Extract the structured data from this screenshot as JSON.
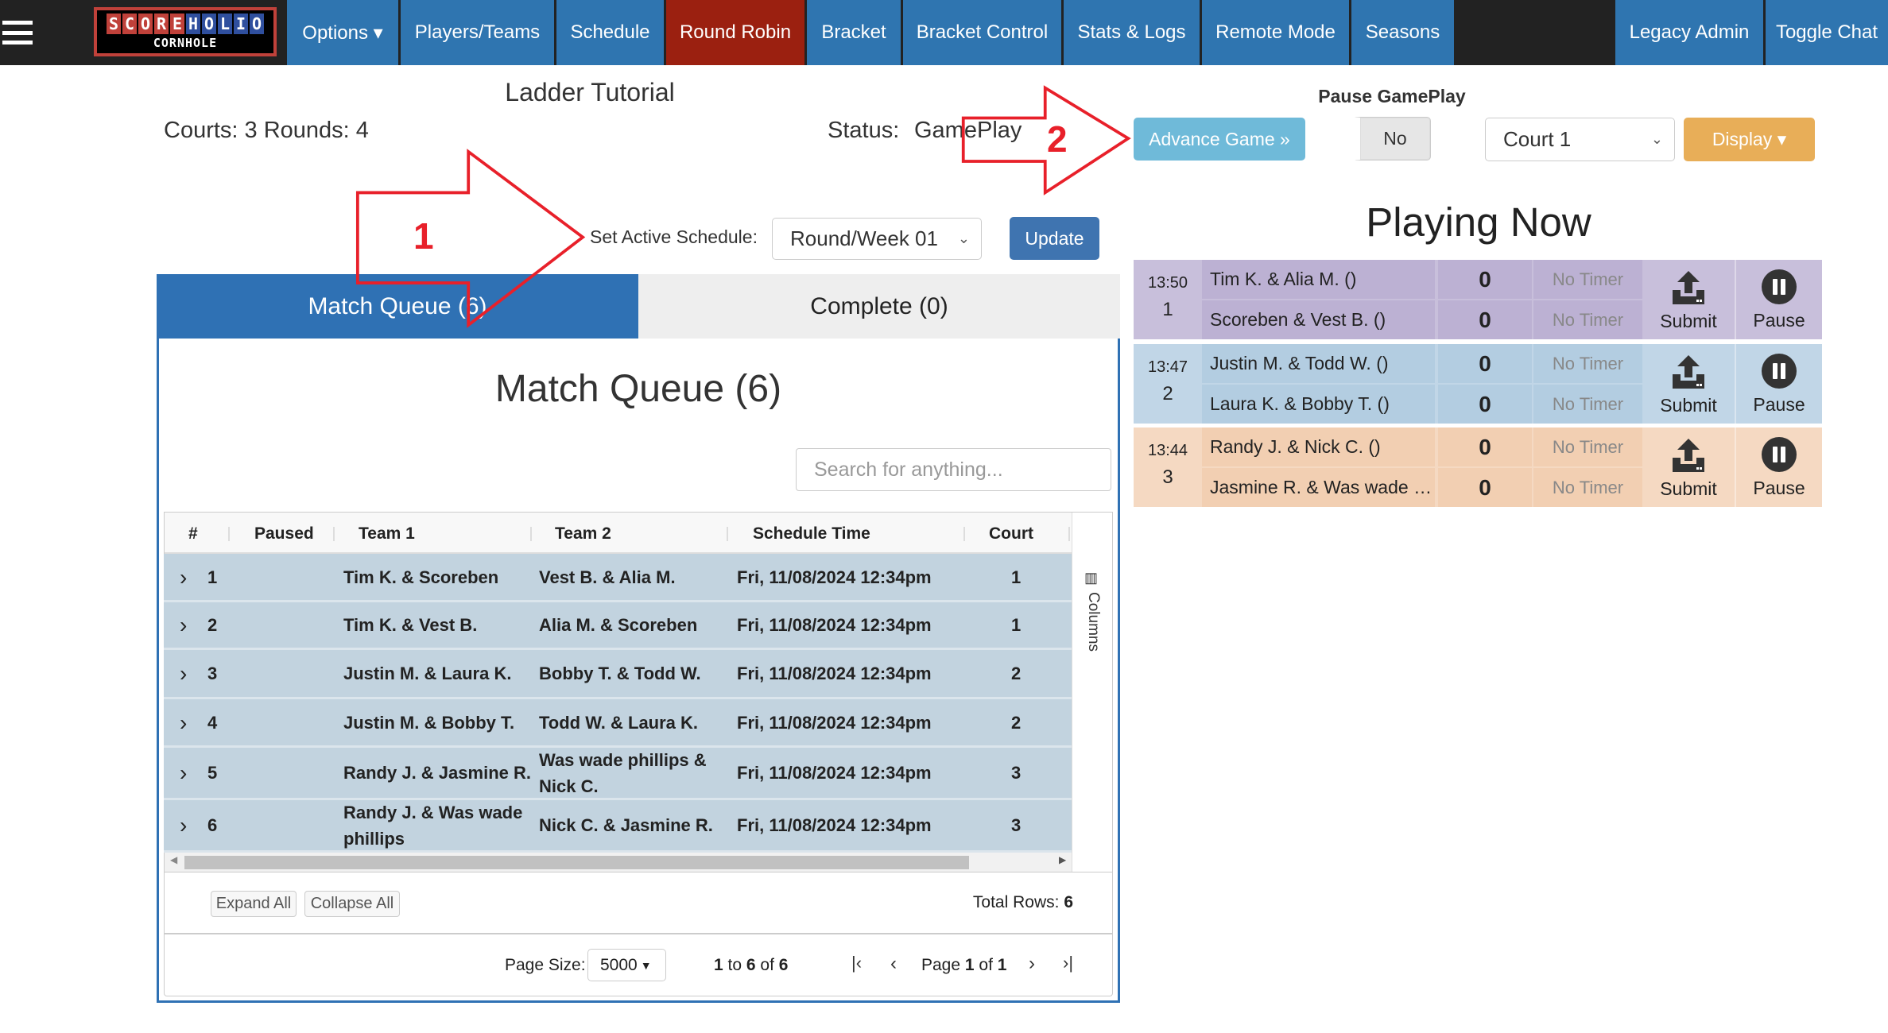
{
  "nav": {
    "logo_top": [
      "S",
      "C",
      "O",
      "R",
      "E",
      "H",
      "O",
      "L",
      "I",
      "O"
    ],
    "logo_bottom": "CORNHOLE",
    "items": [
      "Options ▾",
      "Players/Teams",
      "Schedule",
      "Round Robin",
      "Bracket",
      "Bracket Control",
      "Stats & Logs",
      "Remote Mode",
      "Seasons"
    ],
    "active": "Round Robin",
    "right_items": [
      "Legacy Admin",
      "Toggle Chat"
    ]
  },
  "header": {
    "title": "Ladder Tutorial",
    "courts_rounds": "Courts: 3 Rounds: 4",
    "status_label": "Status:",
    "status_value": "GamePlay",
    "pause_label": "Pause GamePlay",
    "pause_value": "No",
    "advance_label": "Advance Game »",
    "court_select": "Court 1",
    "display_label": "Display ▾"
  },
  "schedule": {
    "label": "Set Active Schedule:",
    "value": "Round/Week 01",
    "update_label": "Update"
  },
  "annotations": {
    "arrow1": "1",
    "arrow2": "2",
    "color": "#e8202a"
  },
  "tabs": [
    {
      "label": "Match Queue (6)",
      "active": true
    },
    {
      "label": "Complete (0)",
      "active": false
    }
  ],
  "queue": {
    "heading": "Match Queue (6)",
    "search_placeholder": "Search for anything...",
    "columns": [
      "#",
      "Paused",
      "Team 1",
      "Team 2",
      "Schedule Time",
      "Court"
    ],
    "columns_panel": "Columns",
    "rows": [
      {
        "num": "1",
        "paused": "",
        "team1": "Tim K. & Scoreben",
        "team2": "Vest B. & Alia M.",
        "time": "Fri, 11/08/2024 12:34pm",
        "court": "1"
      },
      {
        "num": "2",
        "paused": "",
        "team1": "Tim K. & Vest B.",
        "team2": "Alia M. & Scoreben",
        "time": "Fri, 11/08/2024 12:34pm",
        "court": "1"
      },
      {
        "num": "3",
        "paused": "",
        "team1": "Justin M. & Laura K.",
        "team2": "Bobby T. & Todd W.",
        "time": "Fri, 11/08/2024 12:34pm",
        "court": "2"
      },
      {
        "num": "4",
        "paused": "",
        "team1": "Justin M. & Bobby T.",
        "team2": "Todd W. & Laura K.",
        "time": "Fri, 11/08/2024 12:34pm",
        "court": "2"
      },
      {
        "num": "5",
        "paused": "",
        "team1": "Randy J. & Jasmine R.",
        "team2": "Was wade phillips & Nick C.",
        "time": "Fri, 11/08/2024 12:34pm",
        "court": "3"
      },
      {
        "num": "6",
        "paused": "",
        "team1": "Randy J. & Was wade phillips",
        "team2": "Nick C. & Jasmine R.",
        "time": "Fri, 11/08/2024 12:34pm",
        "court": "3"
      }
    ],
    "expand_all": "Expand All",
    "collapse_all": "Collapse All",
    "total_rows_label": "Total Rows:",
    "total_rows": "6",
    "page_size_label": "Page Size:",
    "page_size": "5000",
    "range_from": "1",
    "range_to_word": "to",
    "range_to": "6",
    "range_of_word": "of",
    "range_total": "6",
    "page_word": "Page",
    "page": "1",
    "page_of_word": "of",
    "page_total": "1"
  },
  "playing_now": {
    "title": "Playing Now",
    "matches": [
      {
        "time": "13:50",
        "court": "1",
        "team1": "Tim K. & Alia M. ()",
        "team2": "Scoreben & Vest B. ()",
        "score1": "0",
        "score2": "0",
        "timer1": "No Timer",
        "timer2": "No Timer",
        "submit": "Submit",
        "pause": "Pause",
        "color": "#bcb1d3",
        "color_light": "#c8bfdb"
      },
      {
        "time": "13:47",
        "court": "2",
        "team1": "Justin M. & Todd W. ()",
        "team2": "Laura K. & Bobby T. ()",
        "score1": "0",
        "score2": "0",
        "timer1": "No Timer",
        "timer2": "No Timer",
        "submit": "Submit",
        "pause": "Pause",
        "color": "#b3cde1",
        "color_light": "#c1d6e7"
      },
      {
        "time": "13:44",
        "court": "3",
        "team1": "Randy J. & Nick C. ()",
        "team2": "Jasmine R. & Was wade …",
        "score1": "0",
        "score2": "0",
        "timer1": "No Timer",
        "timer2": "No Timer",
        "submit": "Submit",
        "pause": "Pause",
        "color": "#f2cfb2",
        "color_light": "#f5d9c2"
      }
    ]
  }
}
